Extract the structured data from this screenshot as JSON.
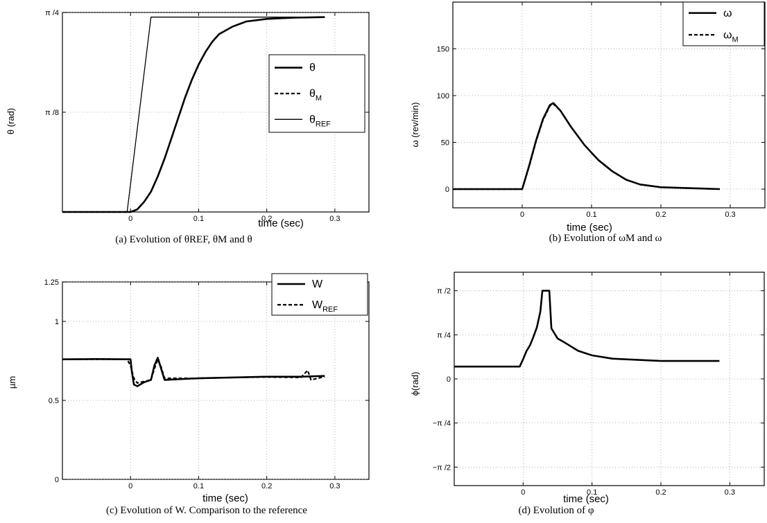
{
  "chart_data": [
    {
      "id": "a",
      "type": "line",
      "caption": "(a) Evolution of θREF, θM and θ",
      "xlabel": "time (sec)",
      "ylabel": "θ (rad)",
      "xlim": [
        -0.1,
        0.35
      ],
      "ylim": [
        0,
        0.7854
      ],
      "xticks": [
        {
          "v": 0,
          "label": "0"
        },
        {
          "v": 0.1,
          "label": "0.1"
        },
        {
          "v": 0.2,
          "label": "0.2"
        },
        {
          "v": 0.3,
          "label": "0.3"
        }
      ],
      "yticks": [
        {
          "v": 0.3927,
          "label": "π /8"
        },
        {
          "v": 0.7854,
          "label": "π /4"
        }
      ],
      "grid": true,
      "legend": {
        "position": "right-middle",
        "entries": [
          {
            "name": "θ",
            "sub": ""
          },
          {
            "name": "θ",
            "sub": "M"
          },
          {
            "name": "θ",
            "sub": "REF"
          }
        ]
      },
      "series": [
        {
          "name": "θ",
          "style": "solid-thick",
          "points": [
            [
              -0.1,
              0
            ],
            [
              0,
              0
            ],
            [
              0.01,
              0.01
            ],
            [
              0.02,
              0.04
            ],
            [
              0.03,
              0.08
            ],
            [
              0.04,
              0.14
            ],
            [
              0.05,
              0.21
            ],
            [
              0.06,
              0.29
            ],
            [
              0.07,
              0.37
            ],
            [
              0.08,
              0.45
            ],
            [
              0.09,
              0.52
            ],
            [
              0.1,
              0.58
            ],
            [
              0.11,
              0.63
            ],
            [
              0.12,
              0.67
            ],
            [
              0.13,
              0.7
            ],
            [
              0.15,
              0.73
            ],
            [
              0.17,
              0.75
            ],
            [
              0.2,
              0.76
            ],
            [
              0.24,
              0.765
            ],
            [
              0.285,
              0.767
            ]
          ]
        },
        {
          "name": "θM",
          "style": "dashed-thick",
          "points": [
            [
              -0.1,
              0
            ],
            [
              0,
              0
            ],
            [
              0.01,
              0.01
            ],
            [
              0.02,
              0.04
            ],
            [
              0.03,
              0.08
            ],
            [
              0.04,
              0.14
            ],
            [
              0.05,
              0.21
            ],
            [
              0.06,
              0.29
            ],
            [
              0.07,
              0.37
            ],
            [
              0.08,
              0.45
            ],
            [
              0.09,
              0.52
            ],
            [
              0.1,
              0.58
            ],
            [
              0.11,
              0.63
            ],
            [
              0.12,
              0.67
            ],
            [
              0.13,
              0.7
            ],
            [
              0.15,
              0.73
            ],
            [
              0.17,
              0.75
            ],
            [
              0.2,
              0.76
            ],
            [
              0.24,
              0.765
            ],
            [
              0.285,
              0.767
            ]
          ]
        },
        {
          "name": "θREF",
          "style": "solid-thin",
          "points": [
            [
              -0.005,
              0
            ],
            [
              0.03,
              0.767
            ],
            [
              0.285,
              0.767
            ]
          ]
        }
      ]
    },
    {
      "id": "b",
      "type": "line",
      "caption": "(b) Evolution of ωM and ω",
      "xlabel": "time (sec)",
      "ylabel": "ω (rev/min)",
      "xlim": [
        -0.1,
        0.35
      ],
      "ylim": [
        -20,
        200
      ],
      "xticks": [
        {
          "v": 0,
          "label": "0"
        },
        {
          "v": 0.1,
          "label": "0.1"
        },
        {
          "v": 0.2,
          "label": "0.2"
        },
        {
          "v": 0.3,
          "label": "0.3"
        }
      ],
      "yticks": [
        {
          "v": 0,
          "label": "0"
        },
        {
          "v": 50,
          "label": "50"
        },
        {
          "v": 100,
          "label": "100"
        },
        {
          "v": 150,
          "label": "150"
        }
      ],
      "grid": true,
      "legend": {
        "position": "top-right",
        "entries": [
          {
            "name": "ω",
            "sub": ""
          },
          {
            "name": "ω",
            "sub": "M"
          }
        ]
      },
      "series": [
        {
          "name": "ω",
          "style": "solid-thick",
          "points": [
            [
              -0.1,
              0
            ],
            [
              0,
              0
            ],
            [
              0.01,
              25
            ],
            [
              0.02,
              52
            ],
            [
              0.03,
              75
            ],
            [
              0.04,
              90
            ],
            [
              0.045,
              92
            ],
            [
              0.055,
              84
            ],
            [
              0.07,
              67
            ],
            [
              0.09,
              47
            ],
            [
              0.11,
              31
            ],
            [
              0.13,
              19
            ],
            [
              0.15,
              10
            ],
            [
              0.17,
              5
            ],
            [
              0.2,
              2
            ],
            [
              0.24,
              1
            ],
            [
              0.285,
              0
            ]
          ]
        },
        {
          "name": "ωM",
          "style": "dashed-thick",
          "points": [
            [
              -0.1,
              0
            ],
            [
              0,
              0
            ],
            [
              0.01,
              24
            ],
            [
              0.02,
              51
            ],
            [
              0.03,
              74
            ],
            [
              0.04,
              89
            ],
            [
              0.045,
              91
            ],
            [
              0.055,
              84
            ],
            [
              0.07,
              67
            ],
            [
              0.09,
              47
            ],
            [
              0.11,
              31
            ],
            [
              0.13,
              19
            ],
            [
              0.15,
              10
            ],
            [
              0.17,
              5
            ],
            [
              0.2,
              2
            ],
            [
              0.24,
              1
            ],
            [
              0.285,
              0
            ]
          ]
        }
      ]
    },
    {
      "id": "c",
      "type": "line",
      "caption": "(c) Evolution of W. Comparison to the reference",
      "xlabel": "time (sec)",
      "ylabel": "µm",
      "xlim": [
        -0.1,
        0.35
      ],
      "ylim": [
        0,
        1.25
      ],
      "xticks": [
        {
          "v": 0,
          "label": "0"
        },
        {
          "v": 0.1,
          "label": "0.1"
        },
        {
          "v": 0.2,
          "label": "0.2"
        },
        {
          "v": 0.3,
          "label": "0.3"
        }
      ],
      "yticks": [
        {
          "v": 0,
          "label": "0"
        },
        {
          "v": 0.5,
          "label": "0.5"
        },
        {
          "v": 1,
          "label": "1"
        },
        {
          "v": 1.25,
          "label": "1.25"
        }
      ],
      "grid": true,
      "legend": {
        "position": "top-right",
        "entries": [
          {
            "name": "W",
            "sub": ""
          },
          {
            "name": "W",
            "sub": "REF"
          }
        ]
      },
      "series": [
        {
          "name": "W",
          "style": "solid-thick",
          "points": [
            [
              -0.1,
              0.76
            ],
            [
              -0.05,
              0.762
            ],
            [
              0,
              0.76
            ],
            [
              0.002,
              0.68
            ],
            [
              0.005,
              0.6
            ],
            [
              0.01,
              0.59
            ],
            [
              0.02,
              0.615
            ],
            [
              0.03,
              0.63
            ],
            [
              0.035,
              0.72
            ],
            [
              0.04,
              0.77
            ],
            [
              0.045,
              0.7
            ],
            [
              0.05,
              0.63
            ],
            [
              0.1,
              0.64
            ],
            [
              0.15,
              0.645
            ],
            [
              0.2,
              0.65
            ],
            [
              0.25,
              0.65
            ],
            [
              0.285,
              0.655
            ]
          ]
        },
        {
          "name": "WREF",
          "style": "dashed-thick",
          "points": [
            [
              -0.1,
              0.76
            ],
            [
              -0.005,
              0.76
            ],
            [
              0,
              0.72
            ],
            [
              0.005,
              0.64
            ],
            [
              0.01,
              0.61
            ],
            [
              0.02,
              0.62
            ],
            [
              0.03,
              0.63
            ],
            [
              0.035,
              0.7
            ],
            [
              0.04,
              0.76
            ],
            [
              0.045,
              0.71
            ],
            [
              0.05,
              0.64
            ],
            [
              0.1,
              0.64
            ],
            [
              0.15,
              0.645
            ],
            [
              0.2,
              0.648
            ],
            [
              0.25,
              0.645
            ],
            [
              0.26,
              0.69
            ],
            [
              0.265,
              0.63
            ],
            [
              0.285,
              0.65
            ]
          ]
        }
      ]
    },
    {
      "id": "d",
      "type": "line",
      "caption": "(d) Evolution of φ",
      "xlabel": "time (sec)",
      "ylabel": "ϕ(rad)",
      "xlim": [
        -0.1,
        0.35
      ],
      "ylim": [
        -1.9,
        1.9
      ],
      "xticks": [
        {
          "v": 0,
          "label": "0"
        },
        {
          "v": 0.1,
          "label": "0.1"
        },
        {
          "v": 0.2,
          "label": "0.2"
        },
        {
          "v": 0.3,
          "label": "0.3"
        }
      ],
      "yticks": [
        {
          "v": -1.5708,
          "label": "−π /2"
        },
        {
          "v": -0.7854,
          "label": "−π /4"
        },
        {
          "v": 0,
          "label": "0"
        },
        {
          "v": 0.7854,
          "label": "π /4"
        },
        {
          "v": 1.5708,
          "label": "π /2"
        }
      ],
      "grid": true,
      "series": [
        {
          "name": "ϕ",
          "style": "solid-thick",
          "points": [
            [
              -0.1,
              0.22
            ],
            [
              -0.005,
              0.22
            ],
            [
              0,
              0.35
            ],
            [
              0.005,
              0.5
            ],
            [
              0.01,
              0.6
            ],
            [
              0.015,
              0.75
            ],
            [
              0.02,
              0.92
            ],
            [
              0.025,
              1.2
            ],
            [
              0.028,
              1.57
            ],
            [
              0.038,
              1.57
            ],
            [
              0.041,
              0.9
            ],
            [
              0.05,
              0.72
            ],
            [
              0.06,
              0.65
            ],
            [
              0.08,
              0.5
            ],
            [
              0.1,
              0.42
            ],
            [
              0.13,
              0.36
            ],
            [
              0.2,
              0.32
            ],
            [
              0.285,
              0.32
            ]
          ]
        }
      ]
    }
  ]
}
